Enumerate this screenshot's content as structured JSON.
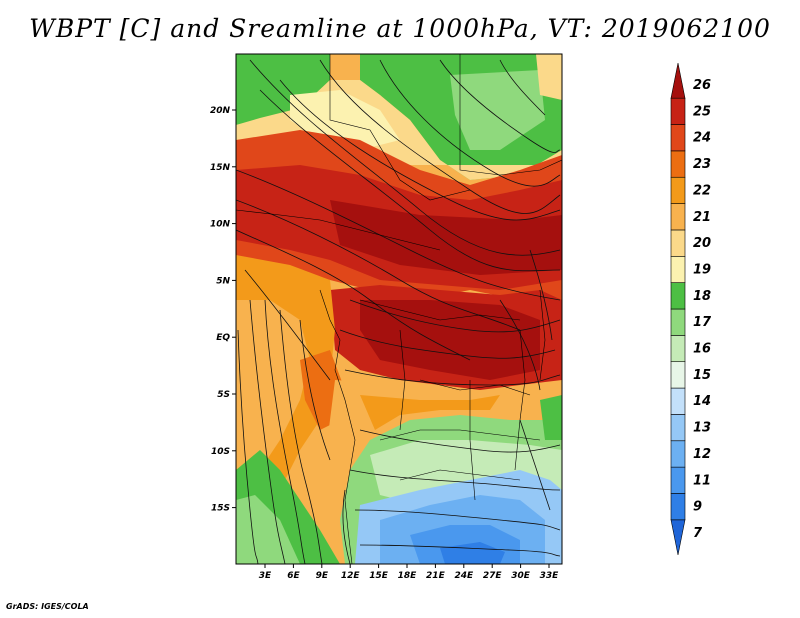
{
  "title": "WBPT [C] and Sreamline at 1000hPa, VT: 2019062100",
  "credit": "GrADS: IGES/COLA",
  "map": {
    "lon_labels": [
      "3E",
      "6E",
      "9E",
      "12E",
      "15E",
      "18E",
      "21E",
      "24E",
      "27E",
      "30E",
      "33E"
    ],
    "lat_labels": [
      "20N",
      "15N",
      "10N",
      "5N",
      "EQ",
      "5S",
      "10S",
      "15S"
    ]
  },
  "colorbar": {
    "levels": [
      "7",
      "9",
      "11",
      "12",
      "13",
      "14",
      "15",
      "16",
      "17",
      "18",
      "19",
      "20",
      "21",
      "22",
      "23",
      "24",
      "25",
      "26"
    ],
    "colors": [
      "#1f65d8",
      "#2f7fe6",
      "#4a98ee",
      "#6cb0f2",
      "#95c8f6",
      "#c3e0fa",
      "#e8f6e8",
      "#c5ebb7",
      "#8fd97d",
      "#4dbf44",
      "#fcf2b0",
      "#fbd98a",
      "#f8b24e",
      "#f39a1a",
      "#ec6e12",
      "#e0471a",
      "#c72316",
      "#a5100e"
    ]
  }
}
